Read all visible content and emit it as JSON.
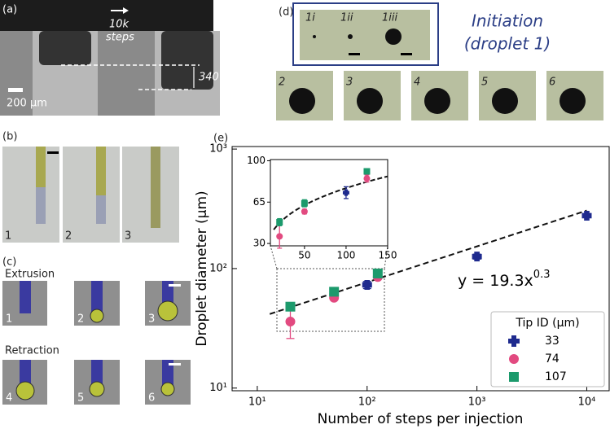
{
  "panels": {
    "a": {
      "label": "(a)",
      "arrow_text": [
        "10k",
        "steps"
      ],
      "height_label": "340 µm",
      "scale_label": "200 µm"
    },
    "b": {
      "label": "(b)",
      "frames": [
        "1",
        "2",
        "3"
      ]
    },
    "c": {
      "label": "(c)",
      "extrusion": "Extrusion",
      "retraction": "Retraction",
      "frames": [
        "1",
        "2",
        "3",
        "4",
        "5",
        "6"
      ]
    },
    "d": {
      "label": "(d)",
      "initiation_frames": [
        "1i",
        "1ii",
        "1iii"
      ],
      "title": [
        "Initiation",
        "(droplet 1)"
      ],
      "frames": [
        "2",
        "3",
        "4",
        "5",
        "6"
      ]
    },
    "e": {
      "label": "(e)"
    }
  },
  "chart_data": {
    "type": "scatter",
    "x_label": "Number of steps per injection",
    "y_label": "Droplet diameter (µm)",
    "log_x": true,
    "log_y": true,
    "xlim": [
      5.9,
      16000
    ],
    "ylim": [
      9.5,
      1050
    ],
    "xticks": [
      {
        "value": 10,
        "label": "10¹"
      },
      {
        "value": 100,
        "label": "10²"
      },
      {
        "value": 1000,
        "label": "10³"
      },
      {
        "value": 10000,
        "label": "10⁴"
      }
    ],
    "yticks": [
      {
        "value": 10,
        "label": "10¹"
      },
      {
        "value": 100,
        "label": "10²"
      },
      {
        "value": 1000,
        "label": "10³"
      }
    ],
    "legend_title": "Tip ID (µm)",
    "legend_position": "lower right",
    "series": [
      {
        "name": "33",
        "color": "#1e2a8e",
        "marker": "plus",
        "x": [
          100,
          1000,
          10000
        ],
        "values": [
          73,
          126,
          277
        ],
        "errors": [
          5,
          6,
          10
        ]
      },
      {
        "name": "74",
        "color": "#e24a80",
        "marker": "circle",
        "x": [
          20,
          50,
          125
        ],
        "values": [
          36,
          57,
          85
        ],
        "errors": [
          10,
          2,
          3
        ]
      },
      {
        "name": "107",
        "color": "#1c9a6c",
        "marker": "square",
        "x": [
          20,
          50,
          125
        ],
        "values": [
          48,
          64,
          91
        ],
        "errors": [
          3,
          3,
          2
        ]
      }
    ],
    "fit": {
      "coefficient": 19.3,
      "exponent": 0.3,
      "x_range": [
        13,
        10000
      ],
      "annotation": "y = 19.3x",
      "annotation_exponent": "0.3"
    },
    "inset": {
      "xlim": [
        9,
        150
      ],
      "ylim": [
        28,
        101
      ],
      "xticks": [
        50,
        100,
        150
      ],
      "yticks": [
        30,
        65,
        100
      ]
    }
  }
}
